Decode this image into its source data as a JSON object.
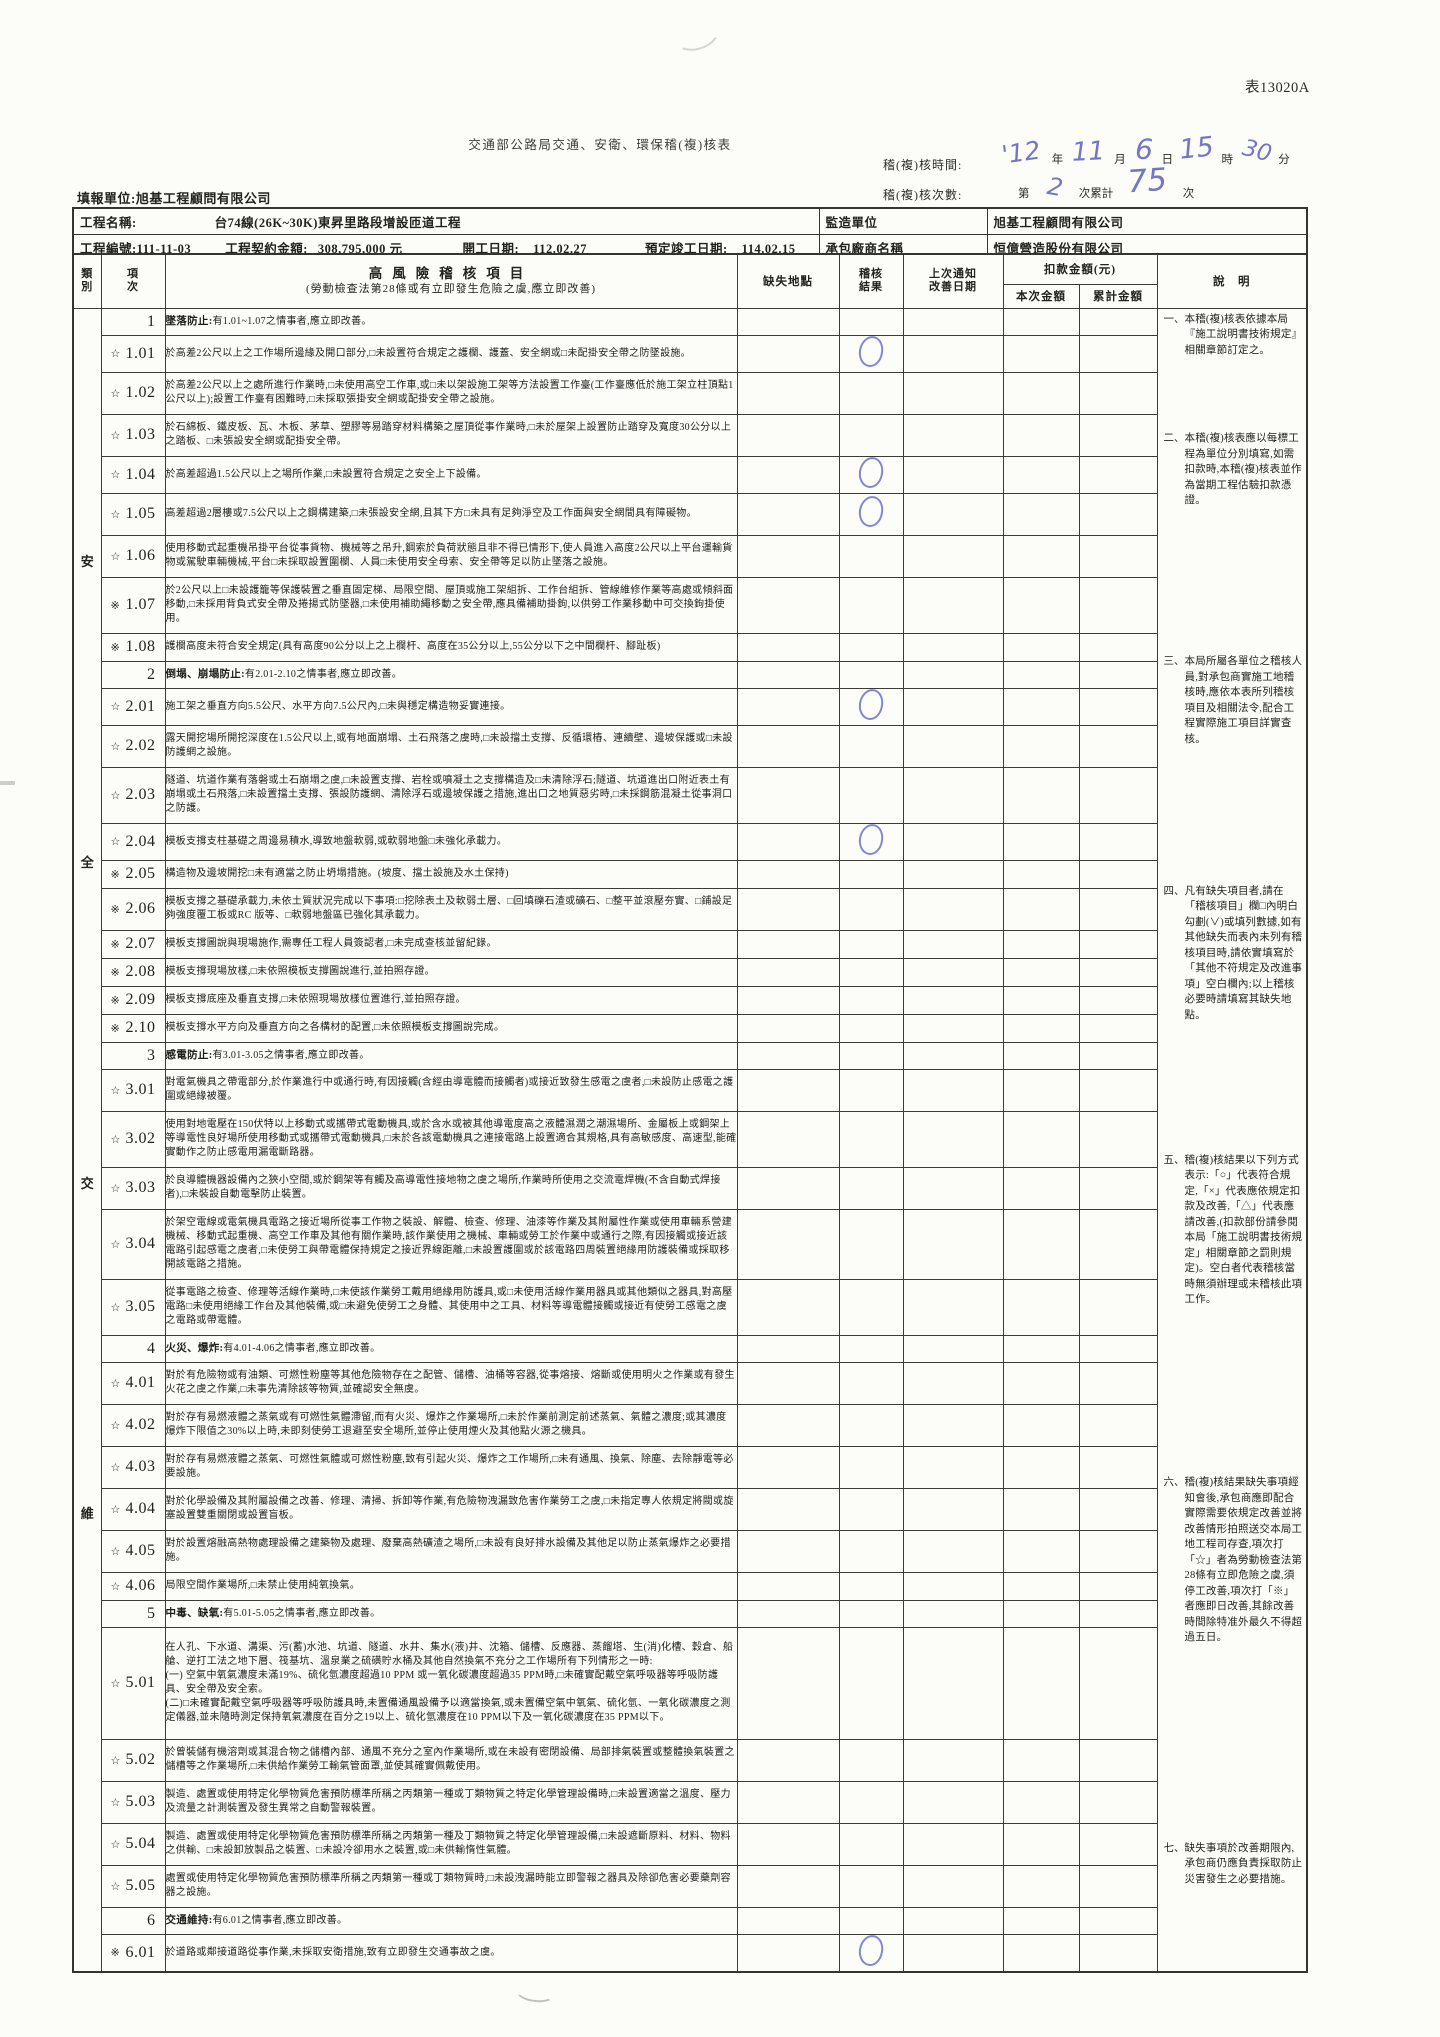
{
  "form_code": "表13020A",
  "title": "交通部公路局交通、安衛、環保稽(複)核表",
  "meta": {
    "fill_unit_label": "填報單位:",
    "fill_unit": "旭基工程顧問有限公司",
    "audit_time_label": "稽(複)核時間:",
    "audit_time": {
      "year": "'12",
      "y_unit": "年",
      "month": "11",
      "m_unit": "月",
      "day": "6",
      "d_unit": "日",
      "hour": "15",
      "h_unit": "時",
      "minute": "30",
      "min_unit": "分"
    },
    "audit_count_label": "稽(複)核次數:",
    "audit_count": {
      "prefix": "第",
      "number": "2",
      "middle": "次累計",
      "total": "75",
      "suffix": "次"
    }
  },
  "info": {
    "project_name_label": "工程名稱:",
    "project_name": "台74線(26K~30K)東昇里路段增設匝道工程",
    "supervisor_label": "監造單位",
    "supervisor": "旭基工程顧問有限公司",
    "project_no_label": "工程編號:",
    "project_no": "111-11-03",
    "contract_amount_label": "工程契約金額:",
    "contract_amount": "308,795,000 元",
    "start_date_label": "開工日期:",
    "start_date": "112.02.27",
    "due_date_label": "預定竣工日期:",
    "due_date": "114.02.15",
    "contractor_label": "承包廠商名稱",
    "contractor": "恒億營造股份有限公司"
  },
  "table": {
    "headers": {
      "category": [
        "類",
        "別"
      ],
      "item_no": [
        "項",
        "次"
      ],
      "item_title": "高風險稽核項目",
      "item_subtitle": "(勞動檢查法第28條或有立即發生危險之虞,應立即改善)",
      "location": "缺失地點",
      "result": [
        "稽核",
        "結果"
      ],
      "last_notice": [
        "上次通知",
        "改善日期"
      ],
      "deduction": "扣款金額(元)",
      "current_amount": "本次金額",
      "cumulative_amount": "累計金額",
      "remarks": "說　明"
    },
    "category_chars": [
      "安",
      "全",
      "交",
      "維"
    ],
    "rows": [
      {
        "t": "section",
        "n": "1",
        "lead": "墜落防止:",
        "x": "有1.01~1.07之情事者,應立即改善。"
      },
      {
        "t": "item",
        "m": "☆",
        "n": "1.01",
        "x": "於高差2公尺以上之工作場所邊緣及開口部分,□未設置符合規定之護欄、護蓋、安全網或□未配掛安全帶之防墜設施。",
        "r": "O"
      },
      {
        "t": "item",
        "m": "☆",
        "n": "1.02",
        "x": "於高差2公尺以上之處所進行作業時,□未使用高空工作車,或□未以架設施工架等方法設置工作臺(工作臺應低於施工架立柱頂點1公尺以上);設置工作臺有困難時,□未採取張掛安全網或配掛安全帶之設施。"
      },
      {
        "t": "item",
        "m": "☆",
        "n": "1.03",
        "x": "於石綿板、鐵皮板、瓦、木板、茅草、塑膠等易踏穿材料構築之屋頂從事作業時,□未於屋架上設置防止踏穿及寬度30公分以上之踏板、□未張設安全網或配掛安全帶。"
      },
      {
        "t": "item",
        "m": "☆",
        "n": "1.04",
        "x": "於高差超過1.5公尺以上之場所作業,□未設置符合規定之安全上下設備。",
        "r": "O"
      },
      {
        "t": "item",
        "m": "☆",
        "n": "1.05",
        "x": "高差超過2層樓或7.5公尺以上之鋼構建築,□未張設安全網,且其下方□未具有足夠淨空及工作面與安全網間具有障礙物。",
        "r": "O"
      },
      {
        "t": "item",
        "m": "☆",
        "n": "1.06",
        "x": "使用移動式起重機吊掛平台從事貨物、機械等之吊升,鋼索於負荷狀態且非不得已情形下,使人員進入高度2公尺以上平台運輸貨物或駕駛車輛機械,平台□未採取設置圍欄、人員□未使用安全母索、安全帶等足以防止墜落之設施。"
      },
      {
        "t": "item",
        "m": "※",
        "n": "1.07",
        "x": "於2公尺以上□未設護籠等保護裝置之垂直固定梯、局限空間、屋頂或施工架組拆、工作台組拆、管線維修作業等高處或傾斜面移動,□未採用背負式安全帶及捲揚式防墜器,□未使用補助繩移動之安全帶,應具備補助掛鉤,以供勞工作業移動中可交換鉤掛使用。"
      },
      {
        "t": "item",
        "m": "※",
        "n": "1.08",
        "x": "護欄高度未符合安全規定(具有高度90公分以上之上欄杆、高度在35公分以上,55公分以下之中間欄杆、腳趾板)"
      },
      {
        "t": "section",
        "n": "2",
        "lead": "倒塌、崩塌防止:",
        "x": "有2.01-2.10之情事者,應立即改善。"
      },
      {
        "t": "item",
        "m": "☆",
        "n": "2.01",
        "x": "施工架之垂直方向5.5公尺、水平方向7.5公尺內,□未與穩定構造物妥實連接。",
        "r": "O"
      },
      {
        "t": "item",
        "m": "☆",
        "n": "2.02",
        "x": "露天開挖場所開挖深度在1.5公尺以上,或有地面崩塌、土石飛落之虞時,□未設擋土支撐、反循環樁、連續壁、邊坡保護或□未設防護網之設施。"
      },
      {
        "t": "item",
        "m": "☆",
        "n": "2.03",
        "x": "隧道、坑道作業有落磐或土石崩塌之虞,□未設置支撐、岩栓或噴凝土之支撐構造及□未清除浮石;隧道、坑道進出口附近表土有崩塌或土石飛落,□未設置擋土支撐、張設防護網、清除浮石或邊坡保護之措施,進出口之地質惡劣時,□未採鋼筋混凝土從事洞口之防護。"
      },
      {
        "t": "item",
        "m": "☆",
        "n": "2.04",
        "x": "模板支撐支柱基礎之周邊易積水,導致地盤軟弱,或軟弱地盤□未強化承載力。",
        "r": "O"
      },
      {
        "t": "item",
        "m": "※",
        "n": "2.05",
        "x": "構造物及邊坡開挖□未有適當之防止坍塌措施。(坡度、擋土設施及水土保持)"
      },
      {
        "t": "item",
        "m": "※",
        "n": "2.06",
        "x": "模板支撐之基礎承載力,未依土質狀況完成以下事項:□挖除表土及軟弱土層、□回填礫石渣或礦石、□整平並滾壓夯實、□鋪設足夠強度覆工板或RC 版等、□軟弱地盤區已強化其承載力。"
      },
      {
        "t": "item",
        "m": "※",
        "n": "2.07",
        "x": "模板支撐圖說與現場施作,需專任工程人員簽認者,□未完成查核並留紀錄。"
      },
      {
        "t": "item",
        "m": "※",
        "n": "2.08",
        "x": "模板支撐現場放樣,□未依照模板支撐圖說進行,並拍照存證。"
      },
      {
        "t": "item",
        "m": "※",
        "n": "2.09",
        "x": "模板支撐底座及垂直支撐,□未依照現場放樣位置進行,並拍照存證。"
      },
      {
        "t": "item",
        "m": "※",
        "n": "2.10",
        "x": "模板支撐水平方向及垂直方向之各構材的配置,□未依照模板支撐圖說完成。"
      },
      {
        "t": "section",
        "n": "3",
        "lead": "感電防止:",
        "x": "有3.01-3.05之情事者,應立即改善。"
      },
      {
        "t": "item",
        "m": "☆",
        "n": "3.01",
        "x": "對電氣機具之帶電部分,於作業進行中或通行時,有因接觸(含經由導電體而接觸者)或接近致發生感電之虞者,□未設防止感電之護圍或絕緣被覆。"
      },
      {
        "t": "item",
        "m": "☆",
        "n": "3.02",
        "x": "使用對地電壓在150伏特以上移動式或攜帶式電動機具,或於含水或被其他導電度高之液體濕潤之潮濕場所、金屬板上或鋼架上等導電性良好場所使用移動式或攜帶式電動機具,□未於各該電動機具之連接電路上設置適合其規格,具有高敏感度、高速型,能確實動作之防止感電用漏電斷路器。"
      },
      {
        "t": "item",
        "m": "☆",
        "n": "3.03",
        "x": "於良導體機器設備內之狹小空間,或於鋼架等有觸及高導電性接地物之虞之場所,作業時所使用之交流電焊機(不含自動式焊接者),□未裝設自動電擊防止裝置。"
      },
      {
        "t": "item",
        "m": "☆",
        "n": "3.04",
        "x": "於架空電線或電氣機具電路之接近場所從事工作物之裝設、解體、檢查、修理、油漆等作業及其附屬性作業或使用車輛系營建機械、移動式起重機、高空工作車及其他有關作業時,該作業使用之機械、車輛或勞工於作業中或通行之際,有因接觸或接近該電路引起感電之虞者,□未使勞工與帶電體保持規定之接近界線距離,□未設置護圍或於該電路四周裝置絕緣用防護裝備或採取移開該電路之措施。"
      },
      {
        "t": "item",
        "m": "☆",
        "n": "3.05",
        "x": "從事電路之檢查、修理等活線作業時,□未使該作業勞工戴用絕緣用防護具,或□未使用活線作業用器具或其他類似之器具,對高壓電路□未使用絕緣工作台及其他裝備,或□未避免使勞工之身體、其使用中之工具、材料等導電體接觸或接近有使勞工感電之虞之電路或帶電體。"
      },
      {
        "t": "section",
        "n": "4",
        "lead": "火災、爆炸:",
        "x": "有4.01-4.06之情事者,應立即改善。"
      },
      {
        "t": "item",
        "m": "☆",
        "n": "4.01",
        "x": "對於有危險物或有油類、可燃性粉塵等其他危險物存在之配管、儲槽、油桶等容器,從事熔接、熔斷或使用明火之作業或有發生火花之虞之作業,□未事先清除該等物質,並確認安全無虞。"
      },
      {
        "t": "item",
        "m": "☆",
        "n": "4.02",
        "x": "對於存有易燃液體之蒸氣或有可燃性氣體滯留,而有火災、爆炸之作業場所,□未於作業前測定前述蒸氣、氣體之濃度;或其濃度爆炸下限值之30%以上時,未即刻使勞工退避至安全場所,並停止使用煙火及其他點火源之機具。"
      },
      {
        "t": "item",
        "m": "☆",
        "n": "4.03",
        "x": "對於存有易燃液體之蒸氣、可燃性氣體或可燃性粉塵,致有引起火災、爆炸之工作場所,□未有通風、換氣、除塵、去除靜電等必要設施。"
      },
      {
        "t": "item",
        "m": "☆",
        "n": "4.04",
        "x": "對於化學設備及其附屬設備之改善、修理、清掃、拆卸等作業,有危險物洩漏致危害作業勞工之虞,□未指定專人依規定將閥或旋塞設置雙重關閉或設置盲板。"
      },
      {
        "t": "item",
        "m": "☆",
        "n": "4.05",
        "x": "對於設置熔融高熱物處理設備之建築物及處理、廢棄高熱礦渣之場所,□未設有良好排水設備及其他足以防止蒸氣爆炸之必要措施。"
      },
      {
        "t": "item",
        "m": "☆",
        "n": "4.06",
        "x": "局限空間作業場所,□未禁止使用純氧換氣。"
      },
      {
        "t": "section",
        "n": "5",
        "lead": "中毒、缺氧:",
        "x": "有5.01-5.05之情事者,應立即改善。"
      },
      {
        "t": "item",
        "m": "☆",
        "n": "5.01",
        "x": "在人孔、下水道、溝渠、污(蓄)水池、坑道、隧道、水井、集水(液)井、沈箱、儲槽、反應器、蒸餾塔、生(消)化槽、穀倉、船艙、逆打工法之地下層、筏基坑、溫泉業之硫磺貯水桶及其他自然換氣不充分之工作場所有下列情形之一時:\n(一) 空氣中氧氣濃度未滿19%、硫化氫濃度超過10 PPM 或一氧化碳濃度超過35 PPM時,□未確實配戴空氣呼吸器等呼吸防護具、安全帶及安全索。\n(二)□未確實配戴空氣呼吸器等呼吸防護具時,未置備通風設備予以適當換氣,或未置備空氣中氧氣、硫化氫、一氧化碳濃度之測定儀器,並未隨時測定保持氧氣濃度在百分之19以上、硫化氫濃度在10 PPM以下及一氧化碳濃度在35 PPM以下。"
      },
      {
        "t": "item",
        "m": "☆",
        "n": "5.02",
        "x": "於曾裝儲有機溶劑或其混合物之儲槽內部、通風不充分之室內作業場所,或在未設有密閉設備、局部排氣裝置或整體換氣裝置之儲槽等之作業場所,□未供給作業勞工輸氣管面罩,並使其確實佩戴使用。"
      },
      {
        "t": "item",
        "m": "☆",
        "n": "5.03",
        "x": "製造、處置或使用特定化學物質危害預防標準所稱之丙類第一種或丁類物質之特定化學管理設備時,□未設置適當之溫度、壓力及流量之計測裝置及發生異常之自動警報裝置。"
      },
      {
        "t": "item",
        "m": "☆",
        "n": "5.04",
        "x": "製造、處置或使用特定化學物質危害預防標準所稱之丙類第一種及丁類物質之特定化學管理設備,□未設遮斷原料、材料、物料之供輸、□未設卸放製品之裝置、□未設冷卻用水之裝置,或□未供輸惰性氣體。"
      },
      {
        "t": "item",
        "m": "☆",
        "n": "5.05",
        "x": "處置或使用特定化學物質危害預防標準所稱之丙類第一種或丁類物質時,□未設洩漏時能立即警報之器具及除卻危害必要藥劑容器之設施。"
      },
      {
        "t": "section",
        "n": "6",
        "lead": "交通維持:",
        "x": "有6.01之情事者,應立即改善。"
      },
      {
        "t": "item",
        "m": "※",
        "n": "6.01",
        "x": "於道路或鄰接道路從事作業,未採取安衛措施,致有立即發生交通事故之虞。",
        "r": "O"
      }
    ],
    "notes": [
      {
        "no": "一",
        "text": "本稽(複)核表依據本局『施工說明書技術規定』相關章節訂定之。"
      },
      {
        "no": "二",
        "text": "本稽(複)核表應以每標工程為單位分別填寫,如需扣款時,本稽(複)核表並作為當期工程估驗扣款憑證。"
      },
      {
        "no": "三",
        "text": "本局所屬各單位之稽核人員,對承包商實施工地稽核時,應依本表所列稽核項目及相關法令,配合工程實際施工項目詳實查核。"
      },
      {
        "no": "四",
        "text": "凡有缺失項目者,請在「稽核項目」欄□內明白勾劃(∨)或填列數據,如有其他缺失而表內未列有稽核項目時,請依實填寫於「其他不符規定及改進事項」空白欄內;以上稽核必要時請填寫其缺失地點。"
      },
      {
        "no": "五",
        "text": "稽(複)核結果以下列方式表示:「○」代表符合規定,「×」代表應依規定扣款及改善,「△」代表應請改善,(扣款部份請參閱本局「施工說明書技術規定」相關章節之罰則規定)。空白者代表稽核當時無須辦理或未稽核此項工作。"
      },
      {
        "no": "六",
        "text": "稽(複)核結果缺失事項經知會後,承包商應即配合實際需要依規定改善並將改善情形拍照送交本局工地工程司存查,項次打「☆」者為勞動檢查法第28條有立即危險之虞,須停工改善,項次打「※」者應即日改善,其餘改善時間除特准外最久不得超過五日。"
      },
      {
        "no": "七",
        "text": "缺失事項於改善期限內,承包商仍應負責採取防止災害發生之必要措施。"
      }
    ]
  }
}
